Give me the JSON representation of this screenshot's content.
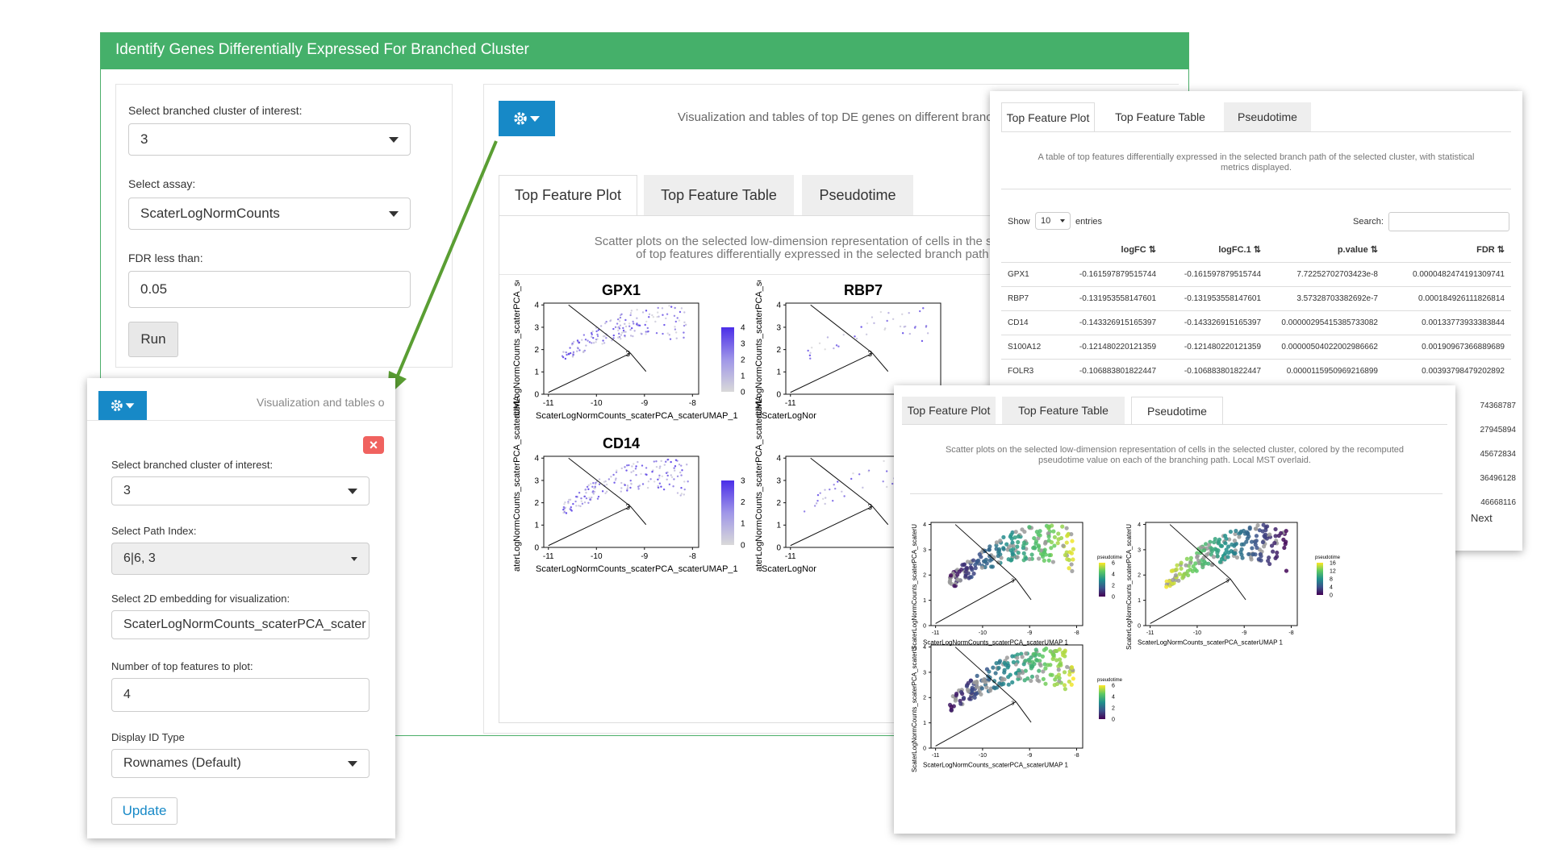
{
  "main": {
    "header_title": "Identify Genes Differentially Expressed For Branched Cluster",
    "sidebar": {
      "cluster_label": "Select branched cluster of interest:",
      "cluster_value": "3",
      "assay_label": "Select assay:",
      "assay_value": "ScaterLogNormCounts",
      "fdr_label": "FDR less than:",
      "fdr_value": "0.05",
      "run_label": "Run"
    },
    "viz_caption": "Visualization and tables of top DE genes on different branch",
    "tabs": [
      "Top Feature Plot",
      "Top Feature Table",
      "Pseudotime"
    ],
    "plot_desc_line1": "Scatter plots on the selected low-dimension representation of cells in the selected cluste",
    "plot_desc_line2": "of top features differentially expressed in the selected branch path. Local",
    "plots": [
      {
        "title": "GPX1",
        "legend_ticks": [
          "4",
          "3",
          "2",
          "1",
          "0"
        ]
      },
      {
        "title": "RBP7",
        "legend_ticks": []
      },
      {
        "title": "CD14",
        "legend_ticks": [
          "3",
          "2",
          "1",
          "0"
        ]
      },
      {
        "title": "",
        "legend_ticks": []
      }
    ],
    "x_ticks": [
      "-11",
      "-10",
      "-9",
      "-8"
    ],
    "y_ticks": [
      "4",
      "3",
      "2",
      "1",
      "0"
    ],
    "x_axis_label": "ScaterLogNormCounts_scaterPCA_scaterUMAP_1",
    "y_axis_label": "aterLogNormCounts_scaterPCA_scaterUMA",
    "x_axis_label_cut": "ScaterLogNor",
    "y_axis_label_cut": "aterLogNormCounts_scaterPCA_scaterUMA",
    "node_label": "3"
  },
  "popup_settings": {
    "caption": "Visualization and tables o",
    "cluster_label": "Select branched cluster of interest:",
    "cluster_value": "3",
    "path_label": "Select Path Index:",
    "path_value": "6|6, 3",
    "embedding_label": "Select 2D embedding for visualization:",
    "embedding_value": "ScaterLogNormCounts_scaterPCA_scater",
    "topn_label": "Number of top features to plot:",
    "topn_value": "4",
    "idtype_label": "Display ID Type",
    "idtype_value": "Rownames (Default)",
    "update_label": "Update",
    "close_glyph": "×"
  },
  "table_window": {
    "tabs": [
      "Top Feature Plot",
      "Top Feature Table",
      "Pseudotime"
    ],
    "desc_line1": "A table of top features differentially expressed in the selected branch path of the selected cluster, with statistical",
    "desc_line2": "metrics displayed.",
    "show_label": "Show",
    "show_value": "10",
    "entries_label": "entries",
    "search_label": "Search:",
    "columns": [
      "",
      "logFC",
      "logFC.1",
      "p.value",
      "FDR"
    ],
    "rows": [
      [
        "GPX1",
        "-0.161597879515744",
        "-0.161597879515744",
        "7.72252702703423e-8",
        "0.0000482474191309741"
      ],
      [
        "RBP7",
        "-0.131953558147601",
        "-0.131953558147601",
        "3.57328703382692e-7",
        "0.000184926111826814"
      ],
      [
        "CD14",
        "-0.143326915165397",
        "-0.143326915165397",
        "0.00000295415385733082",
        "0.00133773933383844"
      ],
      [
        "S100A12",
        "-0.121480220121359",
        "-0.121480220121359",
        "0.00000504022002986662",
        "0.00190967366889689"
      ],
      [
        "FOLR3",
        "-0.106883801822447",
        "-0.106883801822447",
        "0.0000115950969216899",
        "0.00393798479202892"
      ]
    ],
    "partial_fdr": [
      "74368787",
      "27945894",
      "45672834",
      "36496128",
      "46668116"
    ],
    "next_label": "Next"
  },
  "pseudo_window": {
    "tabs": [
      "Top Feature Plot",
      "Top Feature Table",
      "Pseudotime"
    ],
    "desc_line1": "Scatter plots on the selected low-dimension representation of cells in the selected cluster, colored by the recomputed",
    "desc_line2": "pseudotime value on each of the branching path. Local MST overlaid.",
    "legend_title": "pseudotime",
    "legend1_ticks": [
      "6",
      "4",
      "2",
      "0"
    ],
    "legend2_ticks": [
      "16",
      "12",
      "8",
      "4",
      "0"
    ],
    "legend3_ticks": [
      "6",
      "4",
      "2",
      "0"
    ],
    "x_ticks": [
      "-11",
      "-10",
      "-9",
      "-8"
    ],
    "y_ticks": [
      "4",
      "3",
      "2",
      "1",
      "0"
    ],
    "x_axis_label": "ScaterLogNormCounts_scaterPCA_scaterUMAP 1",
    "y_axis_label": "ScaterLogNormCounts_scaterPCA_scaterU",
    "node_label": "3"
  },
  "colors": {
    "header_green": "#45b06a",
    "gear_blue": "#1789c7",
    "arrow_green": "#5a9e33",
    "close_red": "#f0625f",
    "feature_high": "#4b2ee8",
    "feature_low": "#d9d9d9"
  }
}
